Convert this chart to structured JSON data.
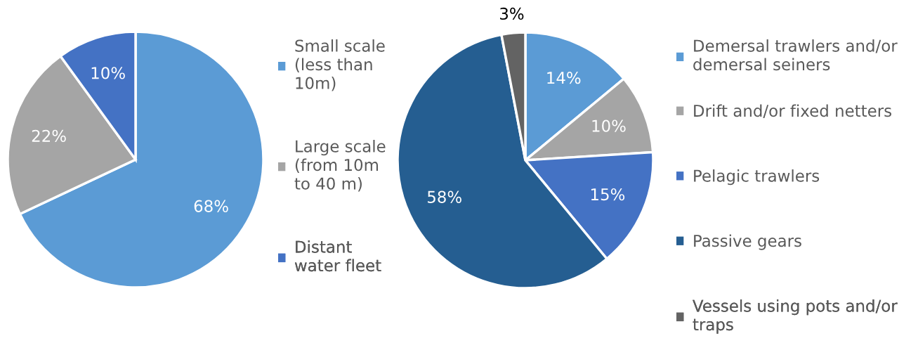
{
  "chart_data": [
    {
      "type": "pie",
      "categories": [
        "Small scale\n(less than\n10m)",
        "Large scale\n(from 10m\nto 40 m)",
        "Distant\nwater fleet"
      ],
      "values": [
        68,
        22,
        10
      ],
      "colors": [
        "#5b9bd5",
        "#a5a5a5",
        "#4472c4"
      ],
      "value_labels": [
        "68%",
        "22%",
        "10%"
      ],
      "legend": "right"
    },
    {
      "type": "pie",
      "categories": [
        "Demersal trawlers and/or\ndemersal seiners",
        "Drift and/or fixed netters",
        "Pelagic trawlers",
        "Passive gears",
        "Vessels using pots and/or\ntraps"
      ],
      "values": [
        14,
        10,
        15,
        58,
        3
      ],
      "colors": [
        "#5b9bd5",
        "#a5a5a5",
        "#4472c4",
        "#255e91",
        "#636363"
      ],
      "value_labels": [
        "14%",
        "10%",
        "15%",
        "58%",
        "3%"
      ],
      "legend": "right"
    }
  ]
}
